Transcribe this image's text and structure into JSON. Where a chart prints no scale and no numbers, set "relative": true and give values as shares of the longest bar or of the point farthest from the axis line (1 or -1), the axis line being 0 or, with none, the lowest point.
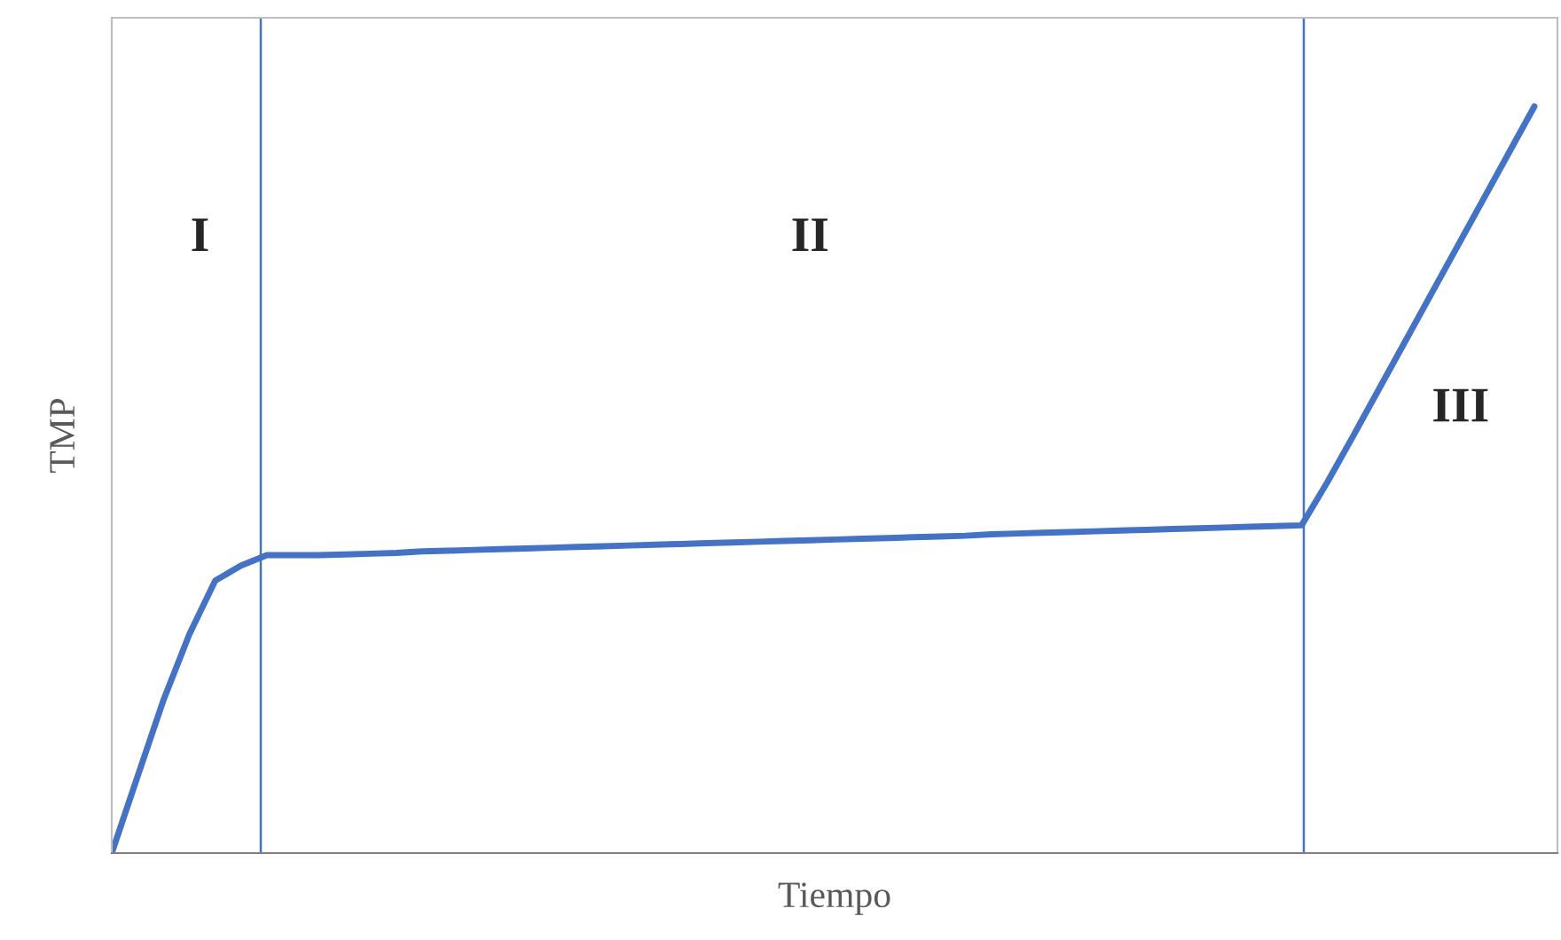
{
  "chart_data": {
    "type": "line",
    "xlabel": "Tiempo",
    "ylabel": "TMP",
    "relative": true,
    "categories": [
      null,
      null,
      null,
      null,
      null,
      null,
      null,
      null,
      null,
      null,
      null,
      null,
      null,
      null,
      null,
      null,
      null,
      null,
      null,
      null,
      null,
      null,
      null,
      null,
      null,
      null,
      null,
      null,
      null,
      null,
      null,
      null,
      null,
      null,
      null,
      null,
      null,
      null,
      null,
      null,
      null,
      null,
      null,
      null,
      null,
      null,
      null,
      null,
      null,
      null,
      null,
      null,
      null,
      null,
      null,
      null
    ],
    "series": [
      {
        "color": "#4472c4",
        "values": [
          0,
          0.103,
          0.205,
          0.293,
          0.365,
          0.385,
          0.399,
          0.399,
          0.399,
          0.4,
          0.401,
          0.402,
          0.404,
          0.405,
          0.406,
          0.407,
          0.408,
          0.409,
          0.41,
          0.411,
          0.412,
          0.413,
          0.414,
          0.415,
          0.416,
          0.417,
          0.418,
          0.419,
          0.42,
          0.421,
          0.422,
          0.423,
          0.424,
          0.425,
          0.427,
          0.428,
          0.429,
          0.43,
          0.431,
          0.432,
          0.433,
          0.434,
          0.435,
          0.436,
          0.437,
          0.438,
          0.439,
          0.497,
          0.559,
          0.622,
          0.685,
          0.748,
          0.811,
          0.874,
          0.937,
          1.0
        ]
      }
    ],
    "annotations": [
      "I",
      "II",
      "III"
    ]
  }
}
